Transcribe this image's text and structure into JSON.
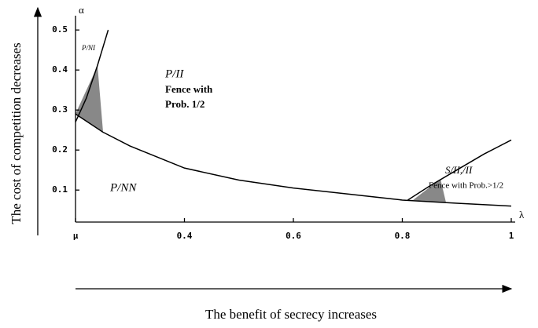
{
  "chart_data": {
    "type": "line",
    "x_axis_label": "The benefit of secrecy increases",
    "y_axis_label": "The cost of competition decreases",
    "x_symbol": "λ",
    "y_symbol": "α",
    "xlim": [
      0.2,
      1.0
    ],
    "ylim": [
      0.02,
      0.52
    ],
    "xticks": [
      {
        "value": 0.2,
        "label": "μ"
      },
      0.4,
      0.6,
      0.8,
      1
    ],
    "yticks": [
      0.1,
      0.2,
      0.3,
      0.4,
      0.5
    ],
    "color": "#000000",
    "curves": [
      {
        "x": [
          0.2,
          0.25,
          0.3,
          0.4,
          0.5,
          0.6,
          0.7,
          0.8,
          0.9,
          1.0
        ],
        "values": [
          0.29,
          0.245,
          0.21,
          0.155,
          0.125,
          0.105,
          0.09,
          0.075,
          0.067,
          0.06
        ]
      },
      {
        "x": [
          0.2,
          0.22,
          0.24,
          0.26
        ],
        "values": [
          0.27,
          0.33,
          0.41,
          0.5
        ]
      },
      {
        "x": [
          0.81,
          0.85,
          0.9,
          0.95,
          1.0
        ],
        "values": [
          0.075,
          0.11,
          0.15,
          0.19,
          0.225
        ]
      }
    ],
    "annotations": [
      "P/NI",
      "P/II",
      "Fence with",
      "Prob. 1/2",
      "S/II,/II",
      "Fence with Prob.>1/2",
      "P/NN"
    ]
  }
}
